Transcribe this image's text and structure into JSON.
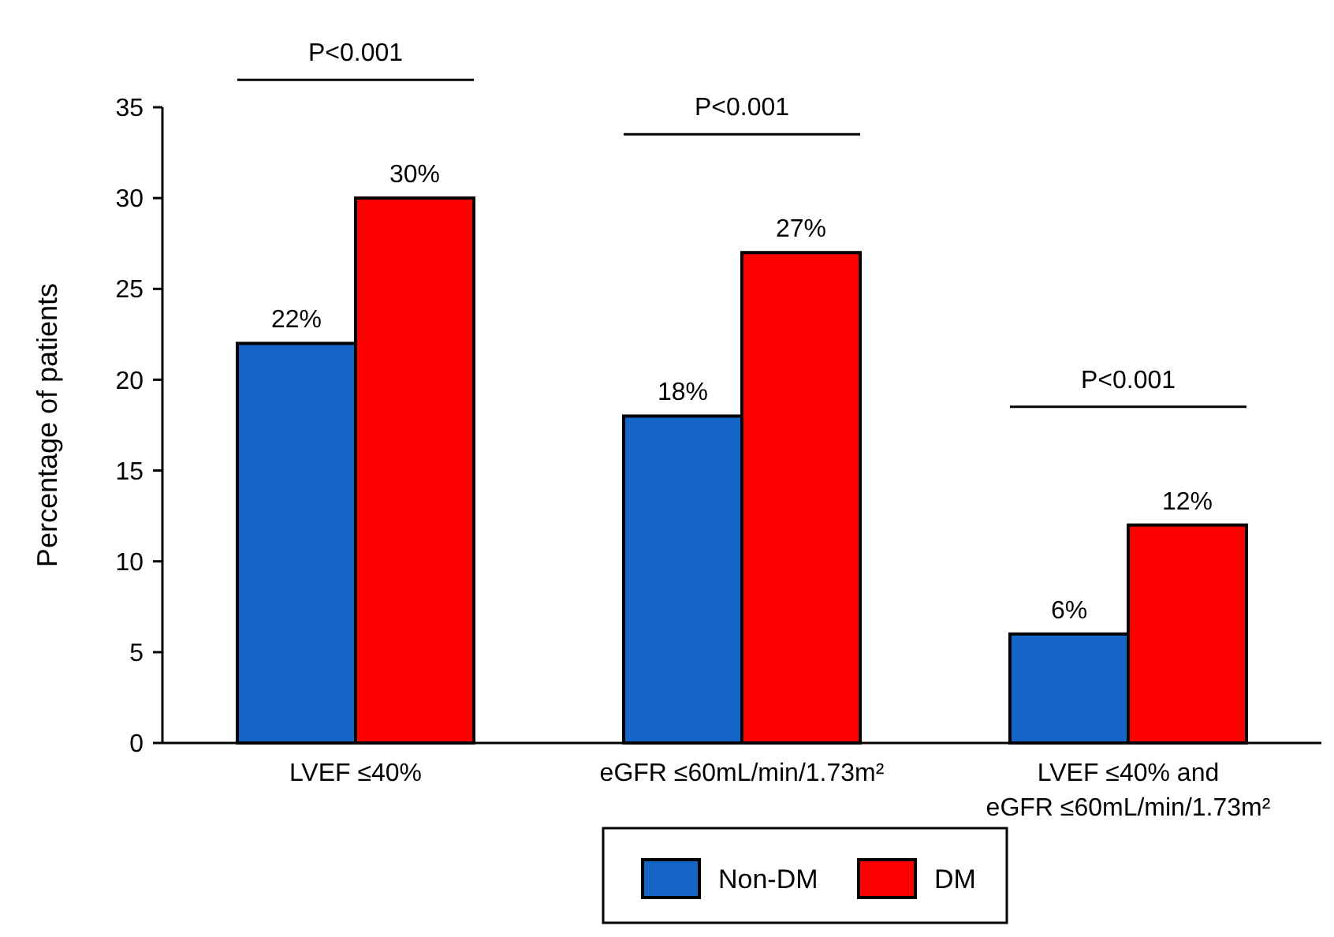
{
  "chart_data": {
    "type": "bar",
    "ylabel": "Percentage of patients",
    "categories": [
      "LVEF ≤40%",
      "eGFR ≤60mL/min/1.73m²",
      "LVEF ≤40% and\neGFR ≤60mL/min/1.73m²"
    ],
    "series": [
      {
        "name": "Non-DM",
        "color": "#1565c8",
        "values": [
          22,
          18,
          6
        ],
        "value_labels": [
          "22%",
          "18%",
          "6%"
        ]
      },
      {
        "name": "DM",
        "color": "#ff0000",
        "values": [
          30,
          27,
          12
        ],
        "value_labels": [
          "30%",
          "27%",
          "12%"
        ]
      }
    ],
    "ylim": [
      0,
      35
    ],
    "yticks": [
      0,
      5,
      10,
      15,
      20,
      25,
      30,
      35
    ],
    "grid": false,
    "legend": "bottom",
    "annotations": [
      "P<0.001",
      "P<0.001",
      "P<0.001"
    ]
  }
}
